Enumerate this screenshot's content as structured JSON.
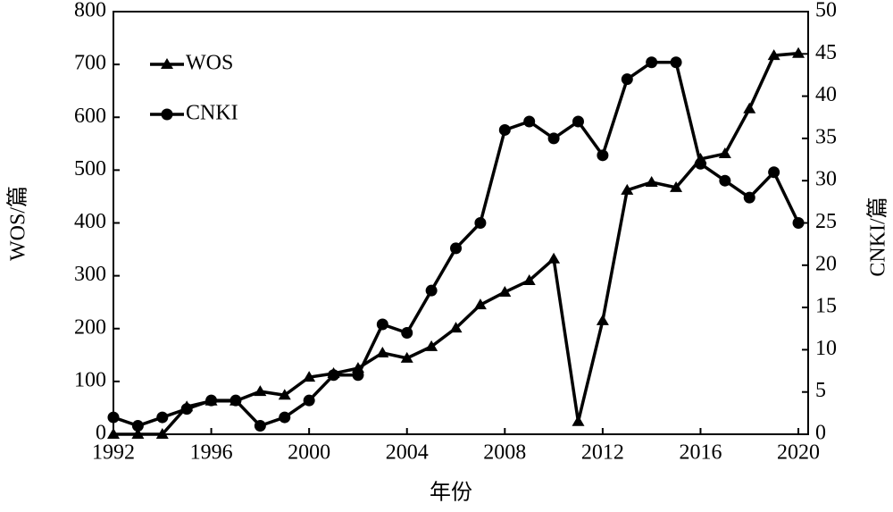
{
  "chart_data": {
    "type": "line",
    "x_label": "年份",
    "y_label": "WOS/篇",
    "y2_label": "CNKI/篇",
    "x": [
      1992,
      1993,
      1994,
      1995,
      1996,
      1997,
      1998,
      1999,
      2000,
      2001,
      2002,
      2003,
      2004,
      2005,
      2006,
      2007,
      2008,
      2009,
      2010,
      2011,
      2012,
      2013,
      2014,
      2015,
      2016,
      2017,
      2018,
      2019,
      2020
    ],
    "series": [
      {
        "name": "WOS",
        "color": "#000000",
        "marker": "triangle",
        "axis": "y",
        "values": [
          0,
          0,
          0,
          52,
          63,
          63,
          81,
          74,
          108,
          115,
          125,
          154,
          144,
          166,
          201,
          245,
          269,
          291,
          332,
          24,
          215,
          462,
          477,
          467,
          521,
          531,
          616,
          717,
          721
        ]
      },
      {
        "name": "CNKI",
        "color": "#000000",
        "marker": "circle",
        "axis": "y2",
        "values": [
          2,
          1,
          2,
          3,
          4,
          4,
          1,
          2,
          4,
          7,
          7,
          13,
          12,
          17,
          22,
          25,
          36,
          37,
          35,
          37,
          33,
          42,
          44,
          44,
          32,
          30,
          28,
          31,
          25
        ]
      }
    ],
    "xlim": [
      1992,
      2020.4
    ],
    "xticks": [
      1992,
      1996,
      2000,
      2004,
      2008,
      2012,
      2016,
      2020
    ],
    "ylim": [
      0,
      800
    ],
    "yticks": [
      0,
      100,
      200,
      300,
      400,
      500,
      600,
      700,
      800
    ],
    "y2lim": [
      0,
      50
    ],
    "y2ticks": [
      0,
      5,
      10,
      15,
      20,
      25,
      30,
      35,
      40,
      45,
      50
    ],
    "legend": "top-left"
  }
}
